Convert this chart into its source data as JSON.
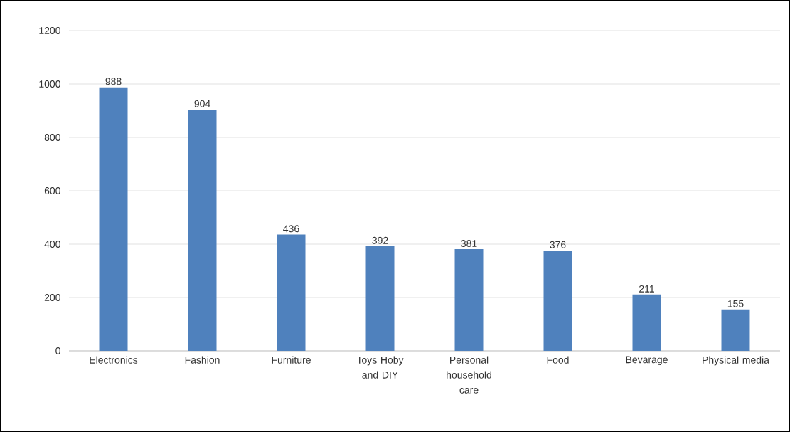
{
  "chart_data": {
    "type": "bar",
    "categories": [
      "Electronics",
      "Fashion",
      "Furniture",
      "Toys Hoby and DIY",
      "Personal household care",
      "Food",
      "Bevarage",
      "Physical media"
    ],
    "values": [
      988,
      904,
      436,
      392,
      381,
      376,
      211,
      155
    ],
    "color": "#4f81bd",
    "ylim": [
      0,
      1200
    ],
    "yticks": [
      0,
      200,
      400,
      600,
      800,
      1000,
      1200
    ],
    "grid": "y",
    "data_labels": true
  }
}
